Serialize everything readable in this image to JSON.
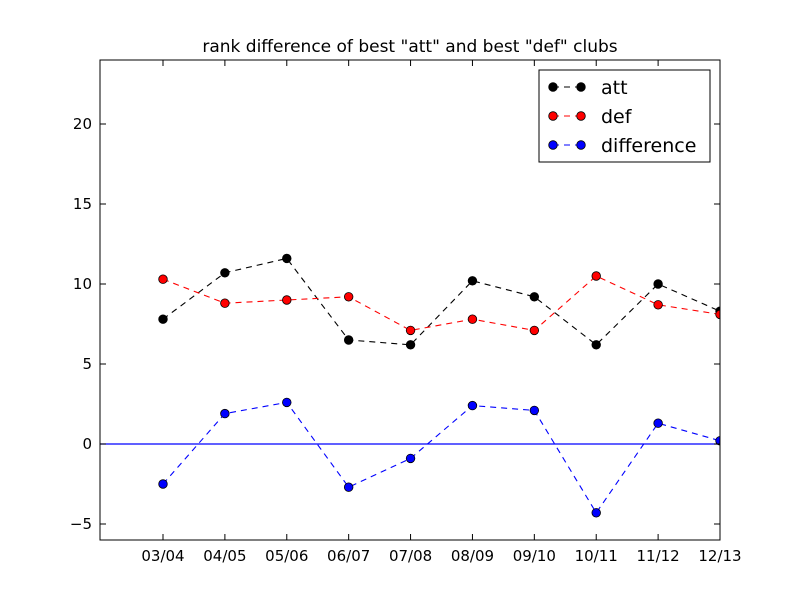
{
  "chart_data": {
    "type": "line",
    "title": "rank difference of best \"att\" and best \"def\" clubs",
    "xlabel": "",
    "ylabel": "",
    "categories": [
      "03/04",
      "04/05",
      "05/06",
      "06/07",
      "07/08",
      "08/09",
      "09/10",
      "10/11",
      "11/12",
      "12/13"
    ],
    "ylim": [
      -6,
      24
    ],
    "yticks": [
      -5,
      0,
      5,
      10,
      15,
      20
    ],
    "ytick_labels": [
      "−5",
      "0",
      "5",
      "10",
      "15",
      "20"
    ],
    "grid": false,
    "legend_position": "top-right",
    "series": [
      {
        "name": "att",
        "color": "#000000",
        "values": [
          7.8,
          10.7,
          11.6,
          6.5,
          6.2,
          10.2,
          9.2,
          6.2,
          10.0,
          8.3
        ]
      },
      {
        "name": "def",
        "color": "#ff0000",
        "values": [
          10.3,
          8.8,
          9.0,
          9.2,
          7.1,
          7.8,
          7.1,
          10.5,
          8.7,
          8.1
        ]
      },
      {
        "name": "difference",
        "color": "#0000ff",
        "values": [
          -2.5,
          1.9,
          2.6,
          -2.7,
          -0.9,
          2.4,
          2.1,
          -4.3,
          1.3,
          0.2
        ]
      }
    ],
    "reference_line": {
      "y": 0,
      "color": "#0000ff"
    }
  }
}
